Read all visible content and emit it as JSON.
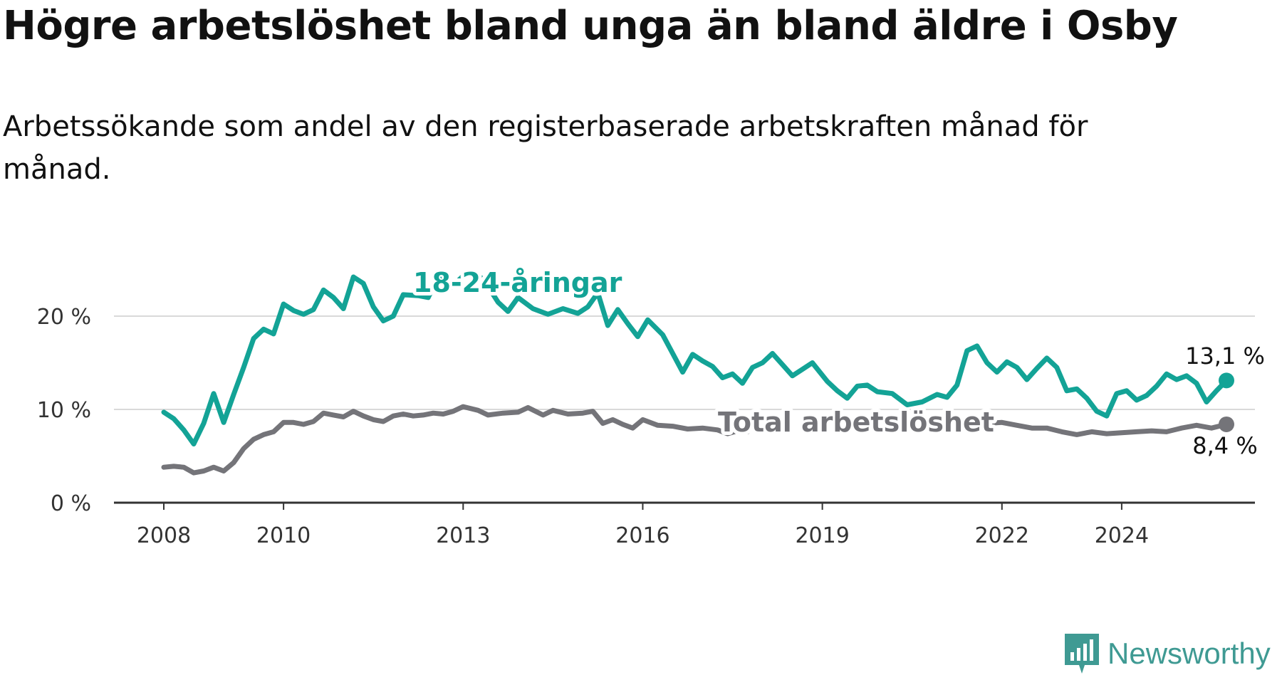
{
  "title": "Högre arbetslöshet bland unga än bland äldre i Osby",
  "subtitle": "Arbetssökande som andel av den registerbaserade arbetskraften månad för månad.",
  "brand": "Newsworthy",
  "colors": {
    "young": "#13a396",
    "total": "#747479",
    "grid": "#d9d9d9",
    "axis": "#333333",
    "brand": "#3f9a93"
  },
  "chart_data": {
    "type": "line",
    "x_axis": {
      "ticks": [
        "2008",
        "2010",
        "2013",
        "2016",
        "2019",
        "2022",
        "2024"
      ],
      "range": [
        "2007-03",
        "2025-12"
      ]
    },
    "y_axis": {
      "ticks": [
        0,
        10,
        20
      ],
      "tick_labels": [
        "0 %",
        "10 %",
        "20 %"
      ],
      "range": [
        0,
        27
      ]
    },
    "grid": true,
    "series": [
      {
        "name": "18-24-åringar",
        "key": "young",
        "end_label": "13,1 %",
        "points": [
          [
            "2008-01",
            9.7
          ],
          [
            "2008-03",
            9.0
          ],
          [
            "2008-05",
            7.8
          ],
          [
            "2008-07",
            6.3
          ],
          [
            "2008-09",
            8.5
          ],
          [
            "2008-11",
            11.7
          ],
          [
            "2009-01",
            8.6
          ],
          [
            "2009-03",
            11.6
          ],
          [
            "2009-05",
            14.5
          ],
          [
            "2009-07",
            17.6
          ],
          [
            "2009-09",
            18.6
          ],
          [
            "2009-11",
            18.1
          ],
          [
            "2010-01",
            21.3
          ],
          [
            "2010-03",
            20.6
          ],
          [
            "2010-05",
            20.2
          ],
          [
            "2010-07",
            20.7
          ],
          [
            "2010-09",
            22.8
          ],
          [
            "2010-11",
            22.0
          ],
          [
            "2011-01",
            20.8
          ],
          [
            "2011-03",
            24.2
          ],
          [
            "2011-05",
            23.5
          ],
          [
            "2011-07",
            21.0
          ],
          [
            "2011-09",
            19.5
          ],
          [
            "2011-11",
            20.0
          ],
          [
            "2012-01",
            22.3
          ],
          [
            "2012-04",
            22.2
          ],
          [
            "2012-06",
            22.0
          ],
          [
            "2012-08",
            24.2
          ],
          [
            "2012-10",
            22.8
          ],
          [
            "2012-12",
            23.8
          ],
          [
            "2013-02",
            24.8
          ],
          [
            "2013-05",
            24.0
          ],
          [
            "2013-08",
            21.5
          ],
          [
            "2013-10",
            20.5
          ],
          [
            "2013-12",
            22.0
          ],
          [
            "2014-03",
            20.8
          ],
          [
            "2014-06",
            20.2
          ],
          [
            "2014-09",
            20.8
          ],
          [
            "2014-12",
            20.3
          ],
          [
            "2015-02",
            21.0
          ],
          [
            "2015-04",
            22.5
          ],
          [
            "2015-06",
            19.0
          ],
          [
            "2015-08",
            20.7
          ],
          [
            "2015-10",
            19.2
          ],
          [
            "2015-12",
            17.8
          ],
          [
            "2016-02",
            19.6
          ],
          [
            "2016-05",
            18.0
          ],
          [
            "2016-07",
            16.0
          ],
          [
            "2016-09",
            14.0
          ],
          [
            "2016-11",
            15.9
          ],
          [
            "2017-01",
            15.2
          ],
          [
            "2017-03",
            14.6
          ],
          [
            "2017-05",
            13.4
          ],
          [
            "2017-07",
            13.8
          ],
          [
            "2017-09",
            12.8
          ],
          [
            "2017-11",
            14.5
          ],
          [
            "2018-01",
            15.0
          ],
          [
            "2018-03",
            16.0
          ],
          [
            "2018-05",
            14.8
          ],
          [
            "2018-07",
            13.6
          ],
          [
            "2018-09",
            14.3
          ],
          [
            "2018-11",
            15.0
          ],
          [
            "2019-02",
            13.0
          ],
          [
            "2019-04",
            12.0
          ],
          [
            "2019-06",
            11.2
          ],
          [
            "2019-08",
            12.5
          ],
          [
            "2019-10",
            12.6
          ],
          [
            "2019-12",
            11.9
          ],
          [
            "2020-03",
            11.7
          ],
          [
            "2020-06",
            10.5
          ],
          [
            "2020-09",
            10.8
          ],
          [
            "2020-12",
            11.6
          ],
          [
            "2021-02",
            11.3
          ],
          [
            "2021-04",
            12.6
          ],
          [
            "2021-06",
            16.3
          ],
          [
            "2021-08",
            16.8
          ],
          [
            "2021-10",
            15.0
          ],
          [
            "2021-12",
            14.0
          ],
          [
            "2022-02",
            15.1
          ],
          [
            "2022-04",
            14.5
          ],
          [
            "2022-06",
            13.2
          ],
          [
            "2022-08",
            14.4
          ],
          [
            "2022-10",
            15.5
          ],
          [
            "2022-12",
            14.5
          ],
          [
            "2023-02",
            12.0
          ],
          [
            "2023-04",
            12.2
          ],
          [
            "2023-06",
            11.2
          ],
          [
            "2023-08",
            9.8
          ],
          [
            "2023-10",
            9.3
          ],
          [
            "2023-12",
            11.7
          ],
          [
            "2024-02",
            12.0
          ],
          [
            "2024-04",
            11.0
          ],
          [
            "2024-06",
            11.5
          ],
          [
            "2024-08",
            12.5
          ],
          [
            "2024-10",
            13.8
          ],
          [
            "2024-12",
            13.2
          ],
          [
            "2025-02",
            13.6
          ],
          [
            "2025-04",
            12.8
          ],
          [
            "2025-06",
            10.8
          ],
          [
            "2025-08",
            12.0
          ],
          [
            "2025-10",
            13.1
          ]
        ]
      },
      {
        "name": "Total arbetslöshet",
        "key": "total",
        "end_label": "8,4 %",
        "points": [
          [
            "2008-01",
            3.8
          ],
          [
            "2008-03",
            3.9
          ],
          [
            "2008-05",
            3.8
          ],
          [
            "2008-07",
            3.2
          ],
          [
            "2008-09",
            3.4
          ],
          [
            "2008-11",
            3.8
          ],
          [
            "2009-01",
            3.4
          ],
          [
            "2009-03",
            4.3
          ],
          [
            "2009-05",
            5.8
          ],
          [
            "2009-07",
            6.8
          ],
          [
            "2009-09",
            7.3
          ],
          [
            "2009-11",
            7.6
          ],
          [
            "2010-01",
            8.6
          ],
          [
            "2010-03",
            8.6
          ],
          [
            "2010-05",
            8.4
          ],
          [
            "2010-07",
            8.7
          ],
          [
            "2010-09",
            9.6
          ],
          [
            "2010-11",
            9.4
          ],
          [
            "2011-01",
            9.2
          ],
          [
            "2011-03",
            9.8
          ],
          [
            "2011-05",
            9.3
          ],
          [
            "2011-07",
            8.9
          ],
          [
            "2011-09",
            8.7
          ],
          [
            "2011-11",
            9.3
          ],
          [
            "2012-01",
            9.5
          ],
          [
            "2012-03",
            9.3
          ],
          [
            "2012-05",
            9.4
          ],
          [
            "2012-07",
            9.6
          ],
          [
            "2012-09",
            9.5
          ],
          [
            "2012-11",
            9.8
          ],
          [
            "2013-01",
            10.3
          ],
          [
            "2013-04",
            9.9
          ],
          [
            "2013-06",
            9.4
          ],
          [
            "2013-09",
            9.6
          ],
          [
            "2013-12",
            9.7
          ],
          [
            "2014-02",
            10.2
          ],
          [
            "2014-05",
            9.4
          ],
          [
            "2014-07",
            9.9
          ],
          [
            "2014-10",
            9.5
          ],
          [
            "2015-01",
            9.6
          ],
          [
            "2015-03",
            9.8
          ],
          [
            "2015-05",
            8.5
          ],
          [
            "2015-07",
            8.9
          ],
          [
            "2015-09",
            8.4
          ],
          [
            "2015-11",
            8.0
          ],
          [
            "2016-01",
            8.9
          ],
          [
            "2016-04",
            8.3
          ],
          [
            "2016-07",
            8.2
          ],
          [
            "2016-10",
            7.9
          ],
          [
            "2017-01",
            8.0
          ],
          [
            "2017-04",
            7.8
          ],
          [
            "2017-06",
            7.4
          ],
          [
            "2017-08",
            7.7
          ],
          [
            "2017-10",
            7.6
          ]
        ],
        "points_after_label": [
          [
            "2021-10",
            8.5
          ],
          [
            "2022-01",
            8.6
          ],
          [
            "2022-04",
            8.3
          ],
          [
            "2022-07",
            8.0
          ],
          [
            "2022-10",
            8.0
          ],
          [
            "2023-01",
            7.6
          ],
          [
            "2023-04",
            7.3
          ],
          [
            "2023-07",
            7.6
          ],
          [
            "2023-10",
            7.4
          ],
          [
            "2024-01",
            7.5
          ],
          [
            "2024-04",
            7.6
          ],
          [
            "2024-07",
            7.7
          ],
          [
            "2024-10",
            7.6
          ],
          [
            "2025-01",
            8.0
          ],
          [
            "2025-04",
            8.3
          ],
          [
            "2025-07",
            8.0
          ],
          [
            "2025-10",
            8.4
          ]
        ]
      }
    ]
  }
}
